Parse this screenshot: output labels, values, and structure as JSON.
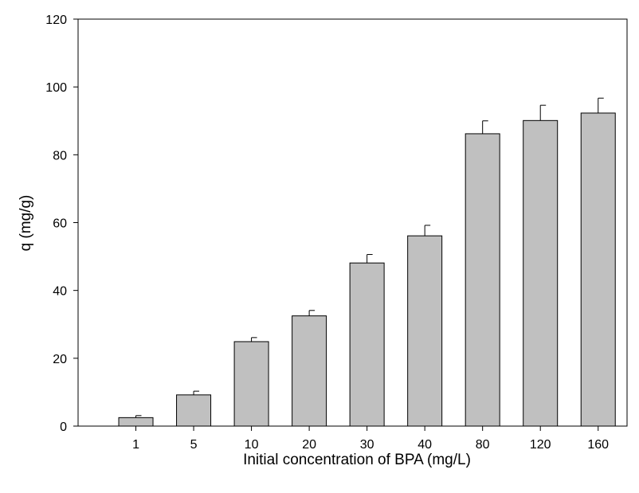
{
  "chart_data": {
    "type": "bar",
    "title": "",
    "xlabel": "Initial concentration of BPA (mg/L)",
    "ylabel": "q (mg/g)",
    "categories": [
      "1",
      "5",
      "10",
      "20",
      "30",
      "40",
      "80",
      "120",
      "160"
    ],
    "values": [
      2.5,
      9.2,
      24.9,
      32.5,
      48.1,
      56.1,
      86.2,
      90.1,
      92.3
    ],
    "error_plus": [
      0.6,
      1.1,
      1.2,
      1.6,
      2.5,
      3.1,
      3.8,
      4.5,
      4.4
    ],
    "ylim": [
      0,
      120
    ],
    "yticks": [
      0,
      20,
      40,
      60,
      80,
      100,
      120
    ],
    "grid": false,
    "legend": "none",
    "colors": {
      "bar_fill": "#c0c0c0",
      "bar_stroke": "#000000",
      "axis": "#000000"
    }
  }
}
